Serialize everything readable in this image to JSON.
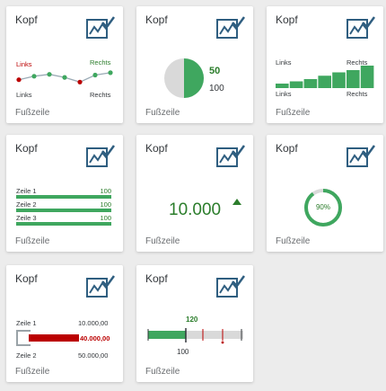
{
  "tiles": {
    "t1": {
      "header": "Kopf",
      "footer": "Fußzeile",
      "top_left": "Links",
      "top_right": "Rechts",
      "bottom_left": "Links",
      "bottom_right": "Rechts",
      "line_values": [
        0.55,
        0.7,
        0.78,
        0.65,
        0.45,
        0.75,
        0.85
      ],
      "colors": {
        "low": "#bb0000",
        "high": "#2b7d2b",
        "line": "#9aaab5"
      }
    },
    "t2": {
      "header": "Kopf",
      "footer": "Fußzeile",
      "value": "50",
      "total": "100",
      "fraction": 0.5
    },
    "t3": {
      "header": "Kopf",
      "footer": "Fußzeile",
      "top_left": "Links",
      "top_right": "Rechts",
      "bottom_left": "Links",
      "bottom_right": "Rechts",
      "bar_levels": [
        0.2,
        0.3,
        0.4,
        0.55,
        0.7,
        0.8,
        1.0
      ]
    },
    "t4": {
      "header": "Kopf",
      "footer": "Fußzeile",
      "rows": [
        {
          "label": "Zeile 1",
          "value": "100"
        },
        {
          "label": "Zeile 2",
          "value": "100"
        },
        {
          "label": "Zeile 3",
          "value": "100"
        }
      ]
    },
    "t5": {
      "header": "Kopf",
      "footer": "Fußzeile",
      "value": "10.000",
      "trend": "up"
    },
    "t6": {
      "header": "Kopf",
      "footer": "Fußzeile",
      "percent_label": "90%",
      "fraction": 0.9
    },
    "t7": {
      "header": "Kopf",
      "footer": "Fußzeile",
      "row1_label": "Zeile 1",
      "row1_value": "10.000,00",
      "bar_value": "40.000,00",
      "row2_label": "Zeile 2",
      "row2_value": "50.000,00",
      "bar_fraction": 0.8
    },
    "t8": {
      "header": "Kopf",
      "footer": "Fußzeile",
      "actual": "120",
      "target": "100",
      "actual_fraction": 0.3
    }
  },
  "colors": {
    "accent": "#3fa75f",
    "text_green": "#2b7d2b",
    "red": "#bb0000",
    "icon": "#2f5e80"
  }
}
